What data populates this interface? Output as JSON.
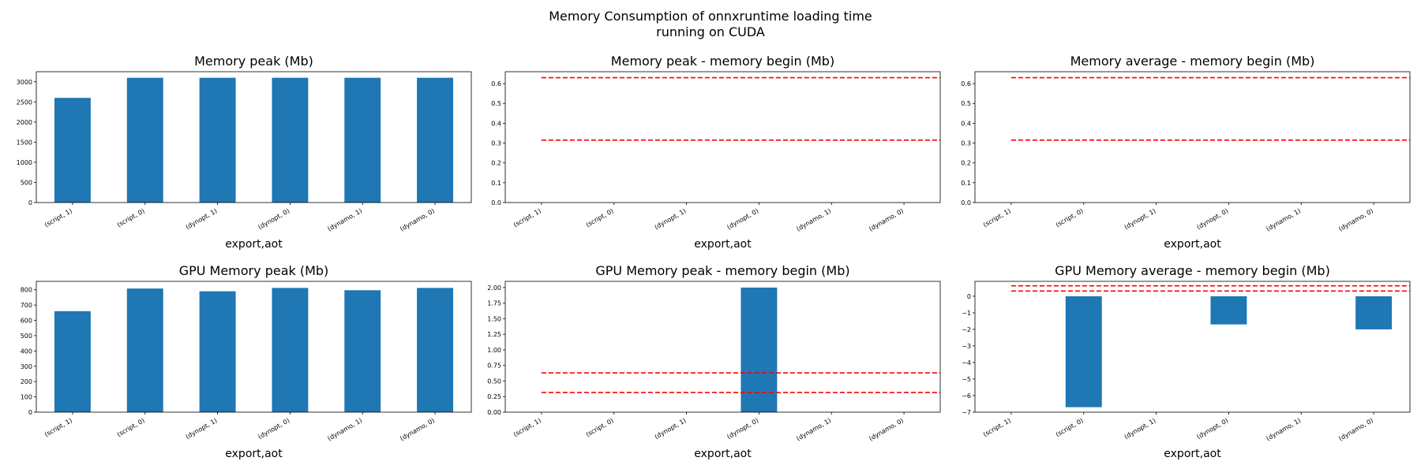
{
  "figure": {
    "title_line1": "Memory Consumption of onnxruntime loading time",
    "title_line2": "running on CUDA"
  },
  "chart_data": [
    {
      "type": "bar",
      "title": "Memory peak (Mb)",
      "xlabel": "export,aot",
      "categories": [
        "(script, 1)",
        "(script, 0)",
        "(dynopt, 1)",
        "(dynopt, 0)",
        "(dynamo, 1)",
        "(dynamo, 0)"
      ],
      "values": [
        2600,
        3100,
        3100,
        3100,
        3100,
        3100
      ],
      "ylim": [
        0,
        3250
      ],
      "yticks": [
        0,
        500,
        1000,
        1500,
        2000,
        2500,
        3000
      ],
      "ytick_labels": [
        "0",
        "500",
        "1000",
        "1500",
        "2000",
        "2500",
        "3000"
      ],
      "hlines": [],
      "bar_color": "#1f77b4",
      "line_color": "#ff0000"
    },
    {
      "type": "bar",
      "title": "Memory peak - memory begin (Mb)",
      "xlabel": "export,aot",
      "categories": [
        "(script, 1)",
        "(script, 0)",
        "(dynopt, 1)",
        "(dynopt, 0)",
        "(dynamo, 1)",
        "(dynamo, 0)"
      ],
      "values": [
        0,
        0,
        0,
        0,
        0,
        0
      ],
      "ylim": [
        0,
        0.66
      ],
      "yticks": [
        0,
        0.1,
        0.2,
        0.3,
        0.4,
        0.5,
        0.6
      ],
      "ytick_labels": [
        "0.0",
        "0.1",
        "0.2",
        "0.3",
        "0.4",
        "0.5",
        "0.6"
      ],
      "hlines": [
        0.315,
        0.63
      ],
      "bar_color": "#1f77b4",
      "line_color": "#ff0000"
    },
    {
      "type": "bar",
      "title": "Memory average - memory begin (Mb)",
      "xlabel": "export,aot",
      "categories": [
        "(script, 1)",
        "(script, 0)",
        "(dynopt, 1)",
        "(dynopt, 0)",
        "(dynamo, 1)",
        "(dynamo, 0)"
      ],
      "values": [
        0,
        0,
        0,
        0,
        0,
        0
      ],
      "ylim": [
        0,
        0.66
      ],
      "yticks": [
        0,
        0.1,
        0.2,
        0.3,
        0.4,
        0.5,
        0.6
      ],
      "ytick_labels": [
        "0.0",
        "0.1",
        "0.2",
        "0.3",
        "0.4",
        "0.5",
        "0.6"
      ],
      "hlines": [
        0.315,
        0.63
      ],
      "bar_color": "#1f77b4",
      "line_color": "#ff0000"
    },
    {
      "type": "bar",
      "title": "GPU Memory peak (Mb)",
      "xlabel": "export,aot",
      "categories": [
        "(script, 1)",
        "(script, 0)",
        "(dynopt, 1)",
        "(dynopt, 0)",
        "(dynamo, 1)",
        "(dynamo, 0)"
      ],
      "values": [
        660,
        808,
        790,
        812,
        797,
        812
      ],
      "ylim": [
        0,
        855
      ],
      "yticks": [
        0,
        100,
        200,
        300,
        400,
        500,
        600,
        700,
        800
      ],
      "ytick_labels": [
        "0",
        "100",
        "200",
        "300",
        "400",
        "500",
        "600",
        "700",
        "800"
      ],
      "hlines": [],
      "bar_color": "#1f77b4",
      "line_color": "#ff0000"
    },
    {
      "type": "bar",
      "title": "GPU Memory peak - memory begin (Mb)",
      "xlabel": "export,aot",
      "categories": [
        "(script, 1)",
        "(script, 0)",
        "(dynopt, 1)",
        "(dynopt, 0)",
        "(dynamo, 1)",
        "(dynamo, 0)"
      ],
      "values": [
        0,
        0,
        0,
        2,
        0,
        0
      ],
      "ylim": [
        0,
        2.1
      ],
      "yticks": [
        0,
        0.25,
        0.5,
        0.75,
        1,
        1.25,
        1.5,
        1.75,
        2
      ],
      "ytick_labels": [
        "0.00",
        "0.25",
        "0.50",
        "0.75",
        "1.00",
        "1.25",
        "1.50",
        "1.75",
        "2.00"
      ],
      "hlines": [
        0.315,
        0.63
      ],
      "bar_color": "#1f77b4",
      "line_color": "#ff0000"
    },
    {
      "type": "bar",
      "title": "GPU Memory average - memory begin (Mb)",
      "xlabel": "export,aot",
      "categories": [
        "(script, 1)",
        "(script, 0)",
        "(dynopt, 1)",
        "(dynopt, 0)",
        "(dynamo, 1)",
        "(dynamo, 0)"
      ],
      "values": [
        0,
        -6.7,
        0,
        -1.7,
        0,
        -2.0
      ],
      "ylim": [
        -7,
        0.9
      ],
      "yticks": [
        -7,
        -6,
        -5,
        -4,
        -3,
        -2,
        -1,
        0
      ],
      "ytick_labels": [
        "−7",
        "−6",
        "−5",
        "−4",
        "−3",
        "−2",
        "−1",
        "0"
      ],
      "hlines": [
        0.315,
        0.63
      ],
      "bar_color": "#1f77b4",
      "line_color": "#ff0000"
    }
  ]
}
